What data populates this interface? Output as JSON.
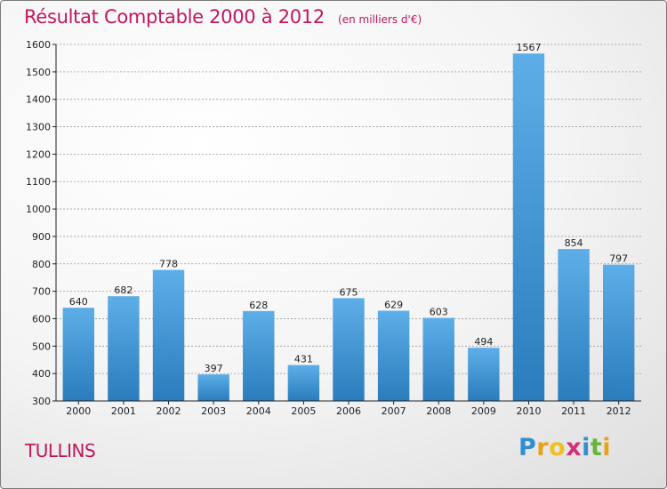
{
  "chart_data": {
    "type": "bar",
    "title": "Résultat Comptable 2000 à 2012",
    "subtitle": "(en milliers d'€)",
    "categories": [
      "2000",
      "2001",
      "2002",
      "2003",
      "2004",
      "2005",
      "2006",
      "2007",
      "2008",
      "2009",
      "2010",
      "2011",
      "2012"
    ],
    "values": [
      640,
      682,
      778,
      397,
      628,
      431,
      675,
      629,
      603,
      494,
      1567,
      854,
      797
    ],
    "xlabel": "",
    "ylabel": "",
    "ylim": [
      300,
      1600
    ],
    "yticks": [
      300,
      400,
      500,
      600,
      700,
      800,
      900,
      1000,
      1100,
      1200,
      1300,
      1400,
      1500,
      1600
    ],
    "grid": true,
    "bar_color_top": "#5daee8",
    "bar_color_bottom": "#2a7cbc"
  },
  "footer": {
    "city": "TULLINS"
  },
  "brand": {
    "text": "Proxiti",
    "letters": [
      "P",
      "r",
      "o",
      "x",
      "i",
      "t",
      "i"
    ],
    "colors": [
      "#2f8fd0",
      "#e8a21a",
      "#f0c020",
      "#d32f7a",
      "#2f8fd0",
      "#6ab43a",
      "#e8a21a"
    ]
  },
  "colors": {
    "title": "#c0175d",
    "axis": "#222222",
    "grid": "#9a9a9a"
  }
}
